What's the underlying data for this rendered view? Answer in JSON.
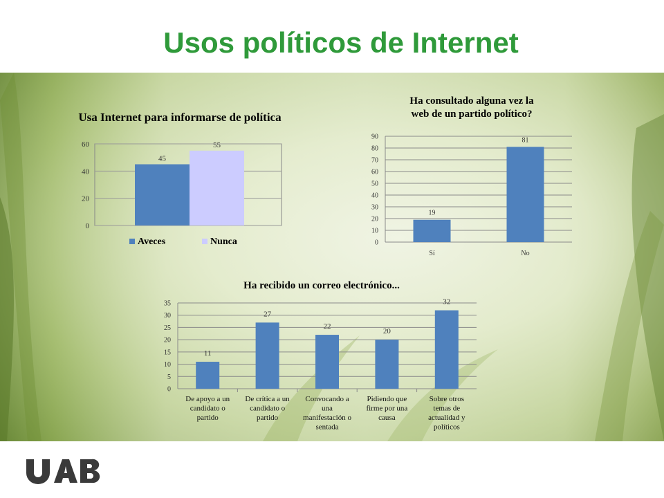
{
  "slide": {
    "title": "Usos políticos de Internet",
    "logo_text": "UAB"
  },
  "colors": {
    "title": "#2f9a3a",
    "bar": "#4f81bd",
    "bar_light": "#ccccff"
  },
  "chart_data": [
    {
      "type": "bar",
      "title": "Usa Internet para informarse de política",
      "categories": [
        ""
      ],
      "series": [
        {
          "name": "Aveces",
          "values": [
            45
          ]
        },
        {
          "name": "Nunca",
          "values": [
            55
          ]
        }
      ],
      "ylim": [
        0,
        60
      ],
      "yticks": [
        0,
        20,
        40,
        60
      ],
      "legend": "bottom",
      "grid": true
    },
    {
      "type": "bar",
      "title": "Ha consultado alguna vez la web de un partido político?",
      "categories": [
        "Sí",
        "No"
      ],
      "values": [
        19,
        81
      ],
      "ylim": [
        0,
        90
      ],
      "yticks": [
        0,
        10,
        20,
        30,
        40,
        50,
        60,
        70,
        80,
        90
      ],
      "grid": true
    },
    {
      "type": "bar",
      "title": "Ha recibido un correo electrónico...",
      "categories": [
        "De apoyo a un candidato o partido",
        "De crítica a un candidato o partido",
        "Convocando a una manifestación o sentada",
        "Pidiendo que firme por una causa",
        "Sobre otros temas de actualidad y políticos"
      ],
      "category_lines": [
        [
          "De apoyo a un",
          "candidato o",
          "partido"
        ],
        [
          "De crítica a un",
          "candidato o",
          "partido"
        ],
        [
          "Convocando a",
          "una",
          "manifestación o",
          "sentada"
        ],
        [
          "Pidiendo que",
          "firme por una",
          "causa"
        ],
        [
          "Sobre otros",
          "temas de",
          "actualidad y",
          "políticos"
        ]
      ],
      "values": [
        11,
        27,
        22,
        20,
        32
      ],
      "ylim": [
        0,
        35
      ],
      "yticks": [
        0,
        5,
        10,
        15,
        20,
        25,
        30,
        35
      ],
      "grid": true
    }
  ]
}
